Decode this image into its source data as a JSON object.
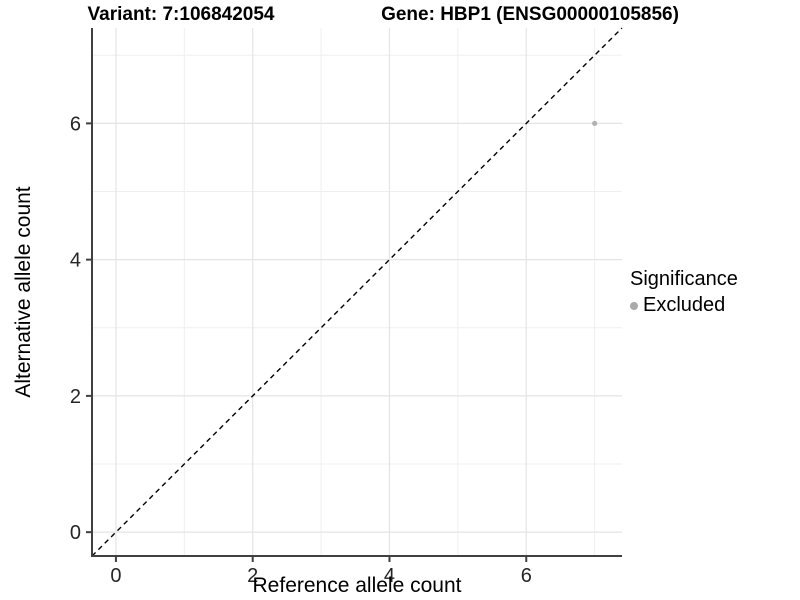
{
  "titles": {
    "left": "Variant: 7:106842054",
    "right": "Gene: HBP1 (ENSG00000105856)"
  },
  "chart_data": {
    "type": "scatter",
    "title": "Variant: 7:106842054    Gene: HBP1 (ENSG00000105856)",
    "xlabel": "Reference allele count",
    "ylabel": "Alternative allele count",
    "xlim": [
      -0.35,
      7.4
    ],
    "ylim": [
      -0.35,
      7.4
    ],
    "xticks": [
      0,
      2,
      4,
      6
    ],
    "yticks": [
      0,
      2,
      4,
      6
    ],
    "minor_grid": [
      1,
      3,
      5,
      7
    ],
    "grid": true,
    "points": [
      {
        "x": 7,
        "y": 6,
        "series": "Excluded"
      }
    ],
    "reference_line": {
      "type": "identity y=x",
      "style": "dashed",
      "color": "#000000"
    },
    "point_color": "#b2b2b2",
    "legend": {
      "title": "Significance",
      "position": "right",
      "items": [
        {
          "label": "Excluded",
          "color": "#aaaaaa"
        }
      ]
    }
  },
  "colors": {
    "background": "#ffffff",
    "axis_line": "#404040",
    "major_grid": "#e4e4e4",
    "minor_grid": "#efefef",
    "tick_label": "#262626"
  }
}
